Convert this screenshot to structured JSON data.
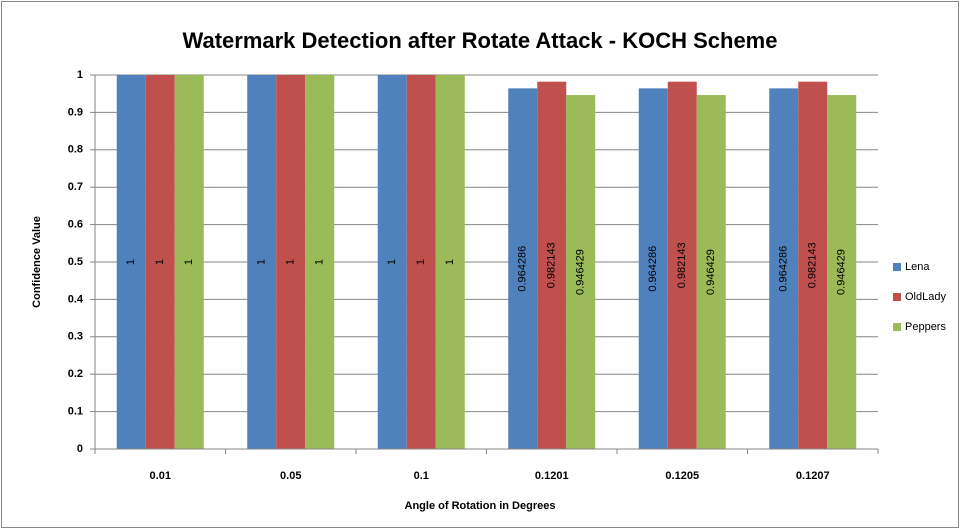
{
  "chart_data": {
    "type": "bar",
    "title": "Watermark Detection  after Rotate Attack - KOCH Scheme",
    "x_label": "Angle of Rotation in Degrees",
    "y_label": "Confidence Value",
    "categories": [
      "0.01",
      "0.05",
      "0.1",
      "0.1201",
      "0.1205",
      "0.1207"
    ],
    "series": [
      {
        "name": "Lena",
        "color": "#4f81bd",
        "values": [
          1,
          1,
          1,
          0.964286,
          0.964286,
          0.964286
        ]
      },
      {
        "name": "OldLady",
        "color": "#c0504d",
        "values": [
          1,
          1,
          1,
          0.982143,
          0.982143,
          0.982143
        ]
      },
      {
        "name": "Peppers",
        "color": "#9bbb59",
        "values": [
          1,
          1,
          1,
          0.946429,
          0.946429,
          0.946429
        ]
      }
    ],
    "ylim": [
      0,
      1
    ],
    "yticks": [
      0,
      0.1,
      0.2,
      0.3,
      0.4,
      0.5,
      0.6,
      0.7,
      0.8,
      0.9,
      1
    ],
    "grid": true,
    "legend": "right",
    "data_labels": true
  }
}
